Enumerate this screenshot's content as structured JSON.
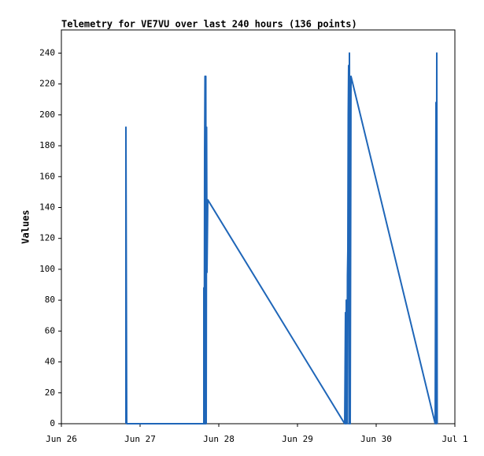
{
  "chart_data": {
    "type": "line",
    "title": "Telemetry for VE7VU over last 240 hours (136 points)",
    "y_label": "Values",
    "x": [
      0.82,
      0.82,
      0.83,
      1.81,
      1.81,
      1.815,
      1.82,
      1.825,
      1.83,
      1.835,
      1.84,
      1.845,
      1.85,
      1.86,
      3.6,
      3.61,
      3.615,
      3.62,
      3.625,
      3.63,
      3.635,
      3.64,
      3.645,
      3.65,
      3.655,
      3.66,
      3.665,
      3.67,
      3.68,
      4.75,
      4.76,
      4.765,
      4.77,
      4.775
    ],
    "series": [
      {
        "name": "Values",
        "color": "#1f66b8",
        "values": [
          0,
          192,
          0,
          0,
          88,
          0,
          175,
          225,
          0,
          225,
          0,
          192,
          98,
          145,
          0,
          72,
          0,
          80,
          48,
          0,
          96,
          112,
          200,
          232,
          0,
          240,
          120,
          0,
          225,
          0,
          208,
          0,
          240,
          0
        ]
      }
    ],
    "xlim": [
      0,
      5
    ],
    "xticks": [
      {
        "value": 0,
        "label": "Jun 26"
      },
      {
        "value": 1,
        "label": "Jun 27"
      },
      {
        "value": 2,
        "label": "Jun 28"
      },
      {
        "value": 3,
        "label": "Jun 29"
      },
      {
        "value": 4,
        "label": "Jun 30"
      },
      {
        "value": 5,
        "label": "Jul 1"
      }
    ],
    "ylim": [
      0,
      255
    ],
    "yticks": [
      0,
      20,
      40,
      60,
      80,
      100,
      120,
      140,
      160,
      180,
      200,
      220,
      240
    ]
  }
}
